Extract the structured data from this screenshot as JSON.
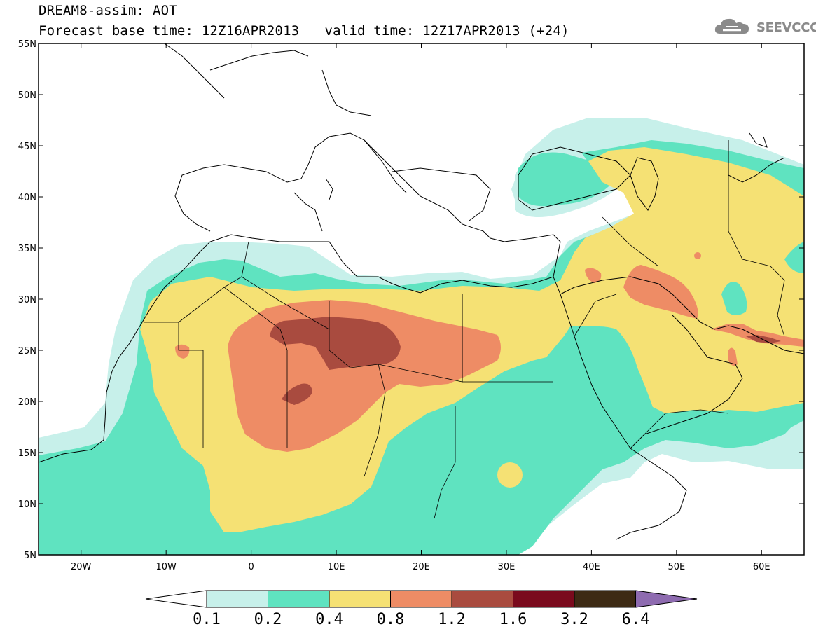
{
  "header": {
    "title": "DREAM8-assim: AOT",
    "base_time": "Forecast base time: 12Z16APR2013",
    "valid_time": "valid time: 12Z17APR2013 (+24)"
  },
  "logo": {
    "text": "SEEVCCC",
    "icon": "cloud-logo-icon"
  },
  "map": {
    "lon_range": [
      -25,
      65
    ],
    "lat_range": [
      5,
      55
    ],
    "lat_ticks": [
      "55N",
      "50N",
      "45N",
      "40N",
      "35N",
      "30N",
      "25N",
      "20N",
      "15N",
      "10N",
      "5N"
    ],
    "lon_ticks": [
      "20W",
      "10W",
      "0",
      "10E",
      "20E",
      "30E",
      "40E",
      "50E",
      "60E"
    ]
  },
  "colorbar": {
    "labels": [
      "0.1",
      "0.2",
      "0.4",
      "0.8",
      "1.2",
      "1.6",
      "3.2",
      "6.4"
    ],
    "colors": [
      "#ffffff",
      "#c7f0ea",
      "#5fe3c0",
      "#f5e174",
      "#ee8c65",
      "#a94b3f",
      "#7a0a1d",
      "#3d2a14",
      "#8e6bb0"
    ]
  }
}
